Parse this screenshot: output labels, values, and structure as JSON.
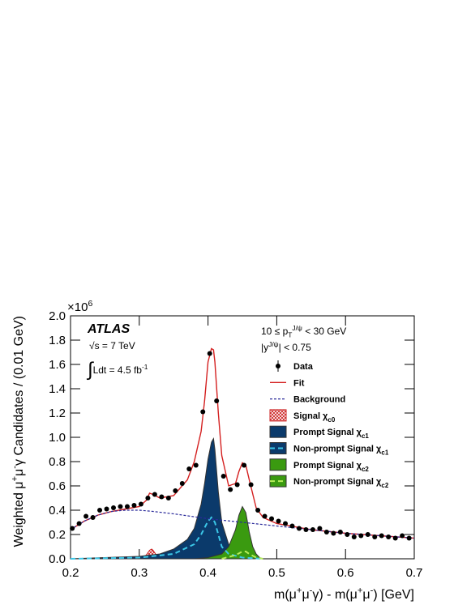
{
  "chart_data": {
    "type": "line",
    "xlim": [
      0.2,
      0.7
    ],
    "ylim": [
      0,
      2
    ],
    "xticks": [
      0.2,
      0.3,
      0.4,
      0.5,
      0.6,
      0.7
    ],
    "yticks": [
      {
        "value": 0,
        "label": "0.0"
      },
      0.2,
      0.4,
      0.6,
      0.8,
      {
        "value": 1,
        "label": "1.0"
      },
      1.2,
      1.4,
      1.6,
      1.8,
      {
        "value": 2,
        "label": "2.0"
      }
    ],
    "y_multiplier": [
      {
        "text": "×10"
      },
      {
        "text": "6",
        "shift": "sup"
      }
    ],
    "y_label": [
      {
        "text": "Weighted μ"
      },
      {
        "text": "+",
        "shift": "sup"
      },
      {
        "text": "μ"
      },
      {
        "text": "-",
        "shift": "sup"
      },
      {
        "text": "γ Candidates / (0.01 GeV)"
      }
    ],
    "x_label": [
      {
        "text": "m(μ"
      },
      {
        "text": "+",
        "shift": "sup"
      },
      {
        "text": "μ"
      },
      {
        "text": "-",
        "shift": "sup"
      },
      {
        "text": "γ) - m(μ"
      },
      {
        "text": "+",
        "shift": "sup"
      },
      {
        "text": "μ"
      },
      {
        "text": "-",
        "shift": "sup"
      },
      {
        "text": ") [GeV]"
      }
    ],
    "annotations": [
      [
        {
          "text": "ATLAS"
        }
      ],
      [
        {
          "text": "√s = 7 TeV"
        }
      ],
      [
        {
          "text": "∫"
        },
        {
          "text": "Ldt = 4.5 fb"
        },
        {
          "text": "-1",
          "shift": "sup"
        }
      ],
      [
        {
          "text": "10 ≤ p"
        },
        {
          "text": "T",
          "shift": "sub"
        },
        {
          "text": "J/ψ",
          "shift": "sup"
        },
        {
          "text": " < 30 GeV"
        }
      ],
      [
        {
          "text": "|y"
        },
        {
          "text": "J/ψ",
          "shift": "sup"
        },
        {
          "text": "| < 0.75"
        }
      ]
    ],
    "series": [
      {
        "name": "Data",
        "mark": "points",
        "color": "#000000",
        "x": [
          0.2025,
          0.2125,
          0.2225,
          0.2325,
          0.2425,
          0.2525,
          0.2625,
          0.2725,
          0.2825,
          0.2925,
          0.3025,
          0.3125,
          0.3225,
          0.3325,
          0.3425,
          0.3525,
          0.3625,
          0.3725,
          0.3825,
          0.3925,
          0.4025,
          0.4125,
          0.4225,
          0.4325,
          0.4425,
          0.4525,
          0.4625,
          0.4725,
          0.4825,
          0.4925,
          0.5025,
          0.5125,
          0.5225,
          0.5325,
          0.5425,
          0.5525,
          0.5625,
          0.5725,
          0.5825,
          0.5925,
          0.6025,
          0.6125,
          0.6225,
          0.6325,
          0.6425,
          0.6525,
          0.6625,
          0.6725,
          0.6825,
          0.6925
        ],
        "values": [
          0.25,
          0.29,
          0.35,
          0.34,
          0.4,
          0.41,
          0.42,
          0.43,
          0.43,
          0.44,
          0.45,
          0.5,
          0.53,
          0.51,
          0.5,
          0.56,
          0.62,
          0.74,
          0.77,
          1.21,
          1.69,
          1.3,
          0.68,
          0.57,
          0.61,
          0.77,
          0.61,
          0.4,
          0.35,
          0.33,
          0.31,
          0.29,
          0.27,
          0.25,
          0.24,
          0.24,
          0.25,
          0.22,
          0.21,
          0.22,
          0.2,
          0.18,
          0.19,
          0.2,
          0.18,
          0.19,
          0.18,
          0.17,
          0.19,
          0.17
        ]
      },
      {
        "name": "Fit",
        "mark": "line",
        "color": "#d42020",
        "x": [
          0.2,
          0.22,
          0.24,
          0.26,
          0.28,
          0.3,
          0.31,
          0.315,
          0.32,
          0.33,
          0.35,
          0.37,
          0.38,
          0.39,
          0.395,
          0.4,
          0.405,
          0.408,
          0.41,
          0.415,
          0.42,
          0.43,
          0.44,
          0.445,
          0.45,
          0.455,
          0.46,
          0.47,
          0.48,
          0.5,
          0.55,
          0.6,
          0.65,
          0.7
        ],
        "values": [
          0.24,
          0.31,
          0.36,
          0.39,
          0.41,
          0.43,
          0.48,
          0.54,
          0.53,
          0.5,
          0.52,
          0.65,
          0.8,
          1.05,
          1.3,
          1.62,
          1.73,
          1.72,
          1.62,
          1.2,
          0.85,
          0.6,
          0.62,
          0.72,
          0.79,
          0.77,
          0.65,
          0.42,
          0.34,
          0.29,
          0.24,
          0.21,
          0.19,
          0.17
        ]
      },
      {
        "name": "Background",
        "mark": "line",
        "dash": true,
        "color": "#2a2a9a",
        "x": [
          0.2,
          0.22,
          0.24,
          0.26,
          0.28,
          0.3,
          0.32,
          0.35,
          0.4,
          0.45,
          0.5,
          0.55,
          0.6,
          0.65,
          0.7
        ],
        "values": [
          0.24,
          0.31,
          0.36,
          0.39,
          0.4,
          0.4,
          0.39,
          0.37,
          0.33,
          0.3,
          0.27,
          0.24,
          0.21,
          0.19,
          0.17
        ]
      },
      {
        "name": "Signal χ",
        "name_sub": "c0",
        "mark": "hatch",
        "color": "#cc2020",
        "x": [
          0.3,
          0.31,
          0.315,
          0.318,
          0.32,
          0.325,
          0.33,
          0.34
        ],
        "values": [
          0,
          0.03,
          0.07,
          0.08,
          0.07,
          0.03,
          0.01,
          0
        ]
      },
      {
        "name": "Prompt Signal χ",
        "name_sub": "c1",
        "mark": "area",
        "color": "#0b3a6b",
        "x": [
          0.2,
          0.25,
          0.3,
          0.33,
          0.35,
          0.37,
          0.38,
          0.39,
          0.395,
          0.4,
          0.405,
          0.408,
          0.41,
          0.415,
          0.42,
          0.43,
          0.44,
          0.46,
          0.48
        ],
        "values": [
          0,
          0.01,
          0.02,
          0.04,
          0.08,
          0.16,
          0.25,
          0.45,
          0.62,
          0.82,
          0.96,
          0.99,
          0.9,
          0.55,
          0.3,
          0.12,
          0.06,
          0.02,
          0
        ]
      },
      {
        "name": "Non-prompt Signal χ",
        "name_sub": "c1",
        "mark": "line",
        "dash": true,
        "color": "#3cc8e8",
        "legend_fill": "#0b3a6b",
        "x": [
          0.2,
          0.3,
          0.35,
          0.38,
          0.39,
          0.4,
          0.405,
          0.41,
          0.415,
          0.42,
          0.43,
          0.45,
          0.48
        ],
        "values": [
          0,
          0.01,
          0.04,
          0.12,
          0.2,
          0.31,
          0.34,
          0.3,
          0.2,
          0.1,
          0.04,
          0.01,
          0
        ]
      },
      {
        "name": "Prompt Signal χ",
        "name_sub": "c2",
        "mark": "area",
        "color": "#3a9a10",
        "x": [
          0.38,
          0.4,
          0.42,
          0.43,
          0.44,
          0.445,
          0.45,
          0.455,
          0.46,
          0.465,
          0.47,
          0.475,
          0.48
        ],
        "values": [
          0,
          0.01,
          0.04,
          0.1,
          0.24,
          0.36,
          0.43,
          0.38,
          0.22,
          0.1,
          0.04,
          0.01,
          0
        ]
      },
      {
        "name": "Non-prompt Signal χ",
        "name_sub": "c2",
        "mark": "line",
        "dash": true,
        "color": "#b6ec5a",
        "legend_fill": "#3a9a10",
        "x": [
          0.42,
          0.44,
          0.45,
          0.455,
          0.46,
          0.47,
          0.48
        ],
        "values": [
          0,
          0.03,
          0.06,
          0.06,
          0.04,
          0.01,
          0
        ]
      }
    ]
  }
}
